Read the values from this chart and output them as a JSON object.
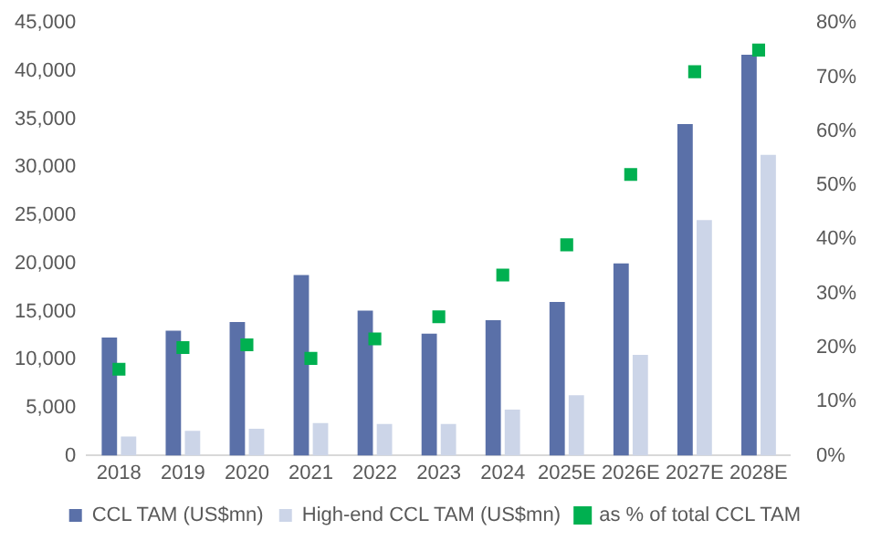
{
  "chart_data": {
    "type": "bar",
    "categories": [
      "2018",
      "2019",
      "2020",
      "2021",
      "2022",
      "2023",
      "2024",
      "2025E",
      "2026E",
      "2027E",
      "2028E"
    ],
    "series": [
      {
        "name": "CCL TAM (US$mn)",
        "color": "#5a70a8",
        "values": [
          12300,
          13000,
          13900,
          18800,
          15100,
          12700,
          14100,
          16000,
          20000,
          34500,
          41700
        ]
      },
      {
        "name": "High-end CCL TAM (US$mn)",
        "color": "#ccd5e8",
        "values": [
          2000,
          2600,
          2800,
          3400,
          3300,
          3300,
          4800,
          6300,
          10500,
          24500,
          31300
        ]
      },
      {
        "name": "as % of total CCL TAM",
        "type": "scatter",
        "axis": "y2",
        "marker": "square",
        "color": "#00b050",
        "values": [
          16,
          20,
          20.5,
          18,
          21.6,
          25.7,
          33.4,
          39,
          52,
          71,
          75
        ]
      }
    ],
    "ylim": [
      0,
      45000
    ],
    "yticks": [
      {
        "value": 0,
        "label": "0"
      },
      {
        "value": 5000,
        "label": "5,000"
      },
      {
        "value": 10000,
        "label": "10,000"
      },
      {
        "value": 15000,
        "label": "15,000"
      },
      {
        "value": 20000,
        "label": "20,000"
      },
      {
        "value": 25000,
        "label": "25,000"
      },
      {
        "value": 30000,
        "label": "30,000"
      },
      {
        "value": 35000,
        "label": "35,000"
      },
      {
        "value": 40000,
        "label": "40,000"
      },
      {
        "value": 45000,
        "label": "45,000"
      }
    ],
    "y2lim": [
      0,
      80
    ],
    "y2ticks": [
      {
        "value": 0,
        "label": "0%"
      },
      {
        "value": 10,
        "label": "10%"
      },
      {
        "value": 20,
        "label": "20%"
      },
      {
        "value": 30,
        "label": "30%"
      },
      {
        "value": 40,
        "label": "40%"
      },
      {
        "value": 50,
        "label": "50%"
      },
      {
        "value": 60,
        "label": "60%"
      },
      {
        "value": 70,
        "label": "70%"
      },
      {
        "value": 80,
        "label": "80%"
      }
    ],
    "grid": false,
    "legend": "bottom"
  }
}
